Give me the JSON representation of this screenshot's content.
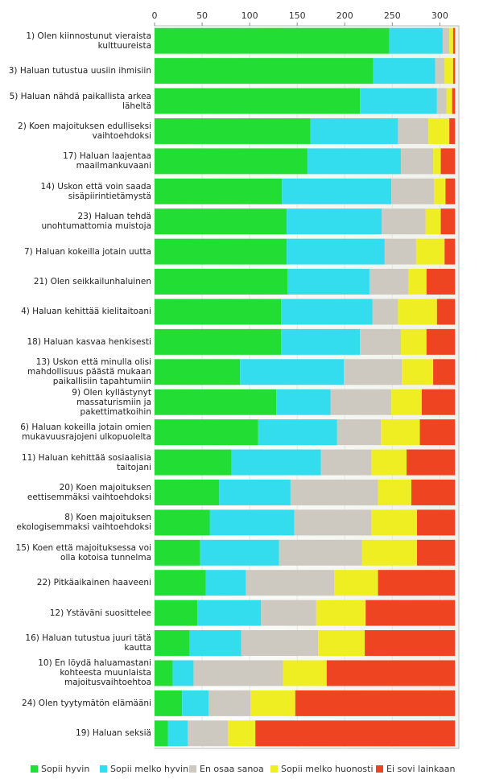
{
  "chart_data": {
    "type": "bar",
    "orientation": "horizontal",
    "stacked": true,
    "categories": [
      "1) Olen kiinnostunut vieraista kulttuureista",
      "3) Haluan tutustua uusiin ihmisiin",
      "5) Haluan nähdä paikallista arkea läheltä",
      "2) Koen majoituksen edulliseksi vaihtoehdoksi",
      "17) Haluan laajentaa maailmankuvaani",
      "14) Uskon että voin saada sisäpiirintietämystä",
      "23) Haluan tehdä unohtumattomia muistoja",
      "7) Haluan kokeilla jotain uutta",
      "21) Olen seikkailunhaluinen",
      "4) Haluan kehittää kielitaitoani",
      "18) Haluan kasvaa henkisesti",
      "13) Uskon että minulla olisi mahdollisuus päästä mukaan paikallisiin tapahtumiin",
      "9) Olen kyllästynyt massaturismiin ja pakettimatkoihin",
      "6) Haluan kokeilla jotain omien mukavuusrajojeni ulkopuolelta",
      "11) Haluan kehittää sosiaalisia taitojani",
      "20) Koen majoituksen eettisemmäksi vaihtoehdoksi",
      "8) Koen majoituksen ekologisemmaksi vaihtoehdoksi",
      "15) Koen että majoituksessa voi olla kotoisa tunnelma",
      "22) Pitkäaikainen haaveeni",
      "12) Ystäväni suosittelee",
      "16) Haluan tutustua juuri tätä kautta",
      "10) En löydä haluamastani kohteesta muunlaista majoitusvaihtoehtoa",
      "24) Olen tyytymätön elämääni",
      "19) Haluan seksiä"
    ],
    "series": [
      {
        "name": "Sopii hyvin",
        "color": "#22dd33",
        "values": [
          247,
          230,
          216,
          164,
          161,
          134,
          139,
          139,
          140,
          133,
          133,
          90,
          128,
          109,
          81,
          68,
          58,
          48,
          54,
          45,
          37,
          19,
          29,
          14
        ]
      },
      {
        "name": "Sopii melko hyvin",
        "color": "#33ddee",
        "values": [
          56,
          65,
          81,
          92,
          98,
          115,
          100,
          103,
          86,
          96,
          83,
          109,
          57,
          83,
          94,
          75,
          89,
          83,
          42,
          67,
          54,
          22,
          28,
          21
        ]
      },
      {
        "name": "En osaa sanoa",
        "color": "#cdc8c0",
        "values": [
          7,
          10,
          10,
          32,
          34,
          45,
          46,
          33,
          41,
          27,
          43,
          61,
          64,
          46,
          53,
          92,
          81,
          87,
          93,
          58,
          81,
          94,
          44,
          42
        ]
      },
      {
        "name": "Sopii melko huonosti",
        "color": "#eeee22",
        "values": [
          4,
          9,
          6,
          22,
          8,
          12,
          16,
          30,
          19,
          41,
          27,
          33,
          32,
          41,
          37,
          35,
          48,
          58,
          46,
          52,
          49,
          46,
          47,
          29
        ]
      },
      {
        "name": "Ei sovi lainkaan",
        "color": "#ee4422",
        "values": [
          2,
          2,
          3,
          6,
          15,
          10,
          15,
          11,
          30,
          19,
          30,
          23,
          35,
          37,
          51,
          46,
          40,
          40,
          81,
          94,
          95,
          135,
          168,
          210
        ]
      }
    ],
    "xlim": [
      0,
      320
    ],
    "xticks": [
      0,
      50,
      100,
      150,
      200,
      250,
      300
    ],
    "grid": true,
    "legend": "bottom"
  }
}
